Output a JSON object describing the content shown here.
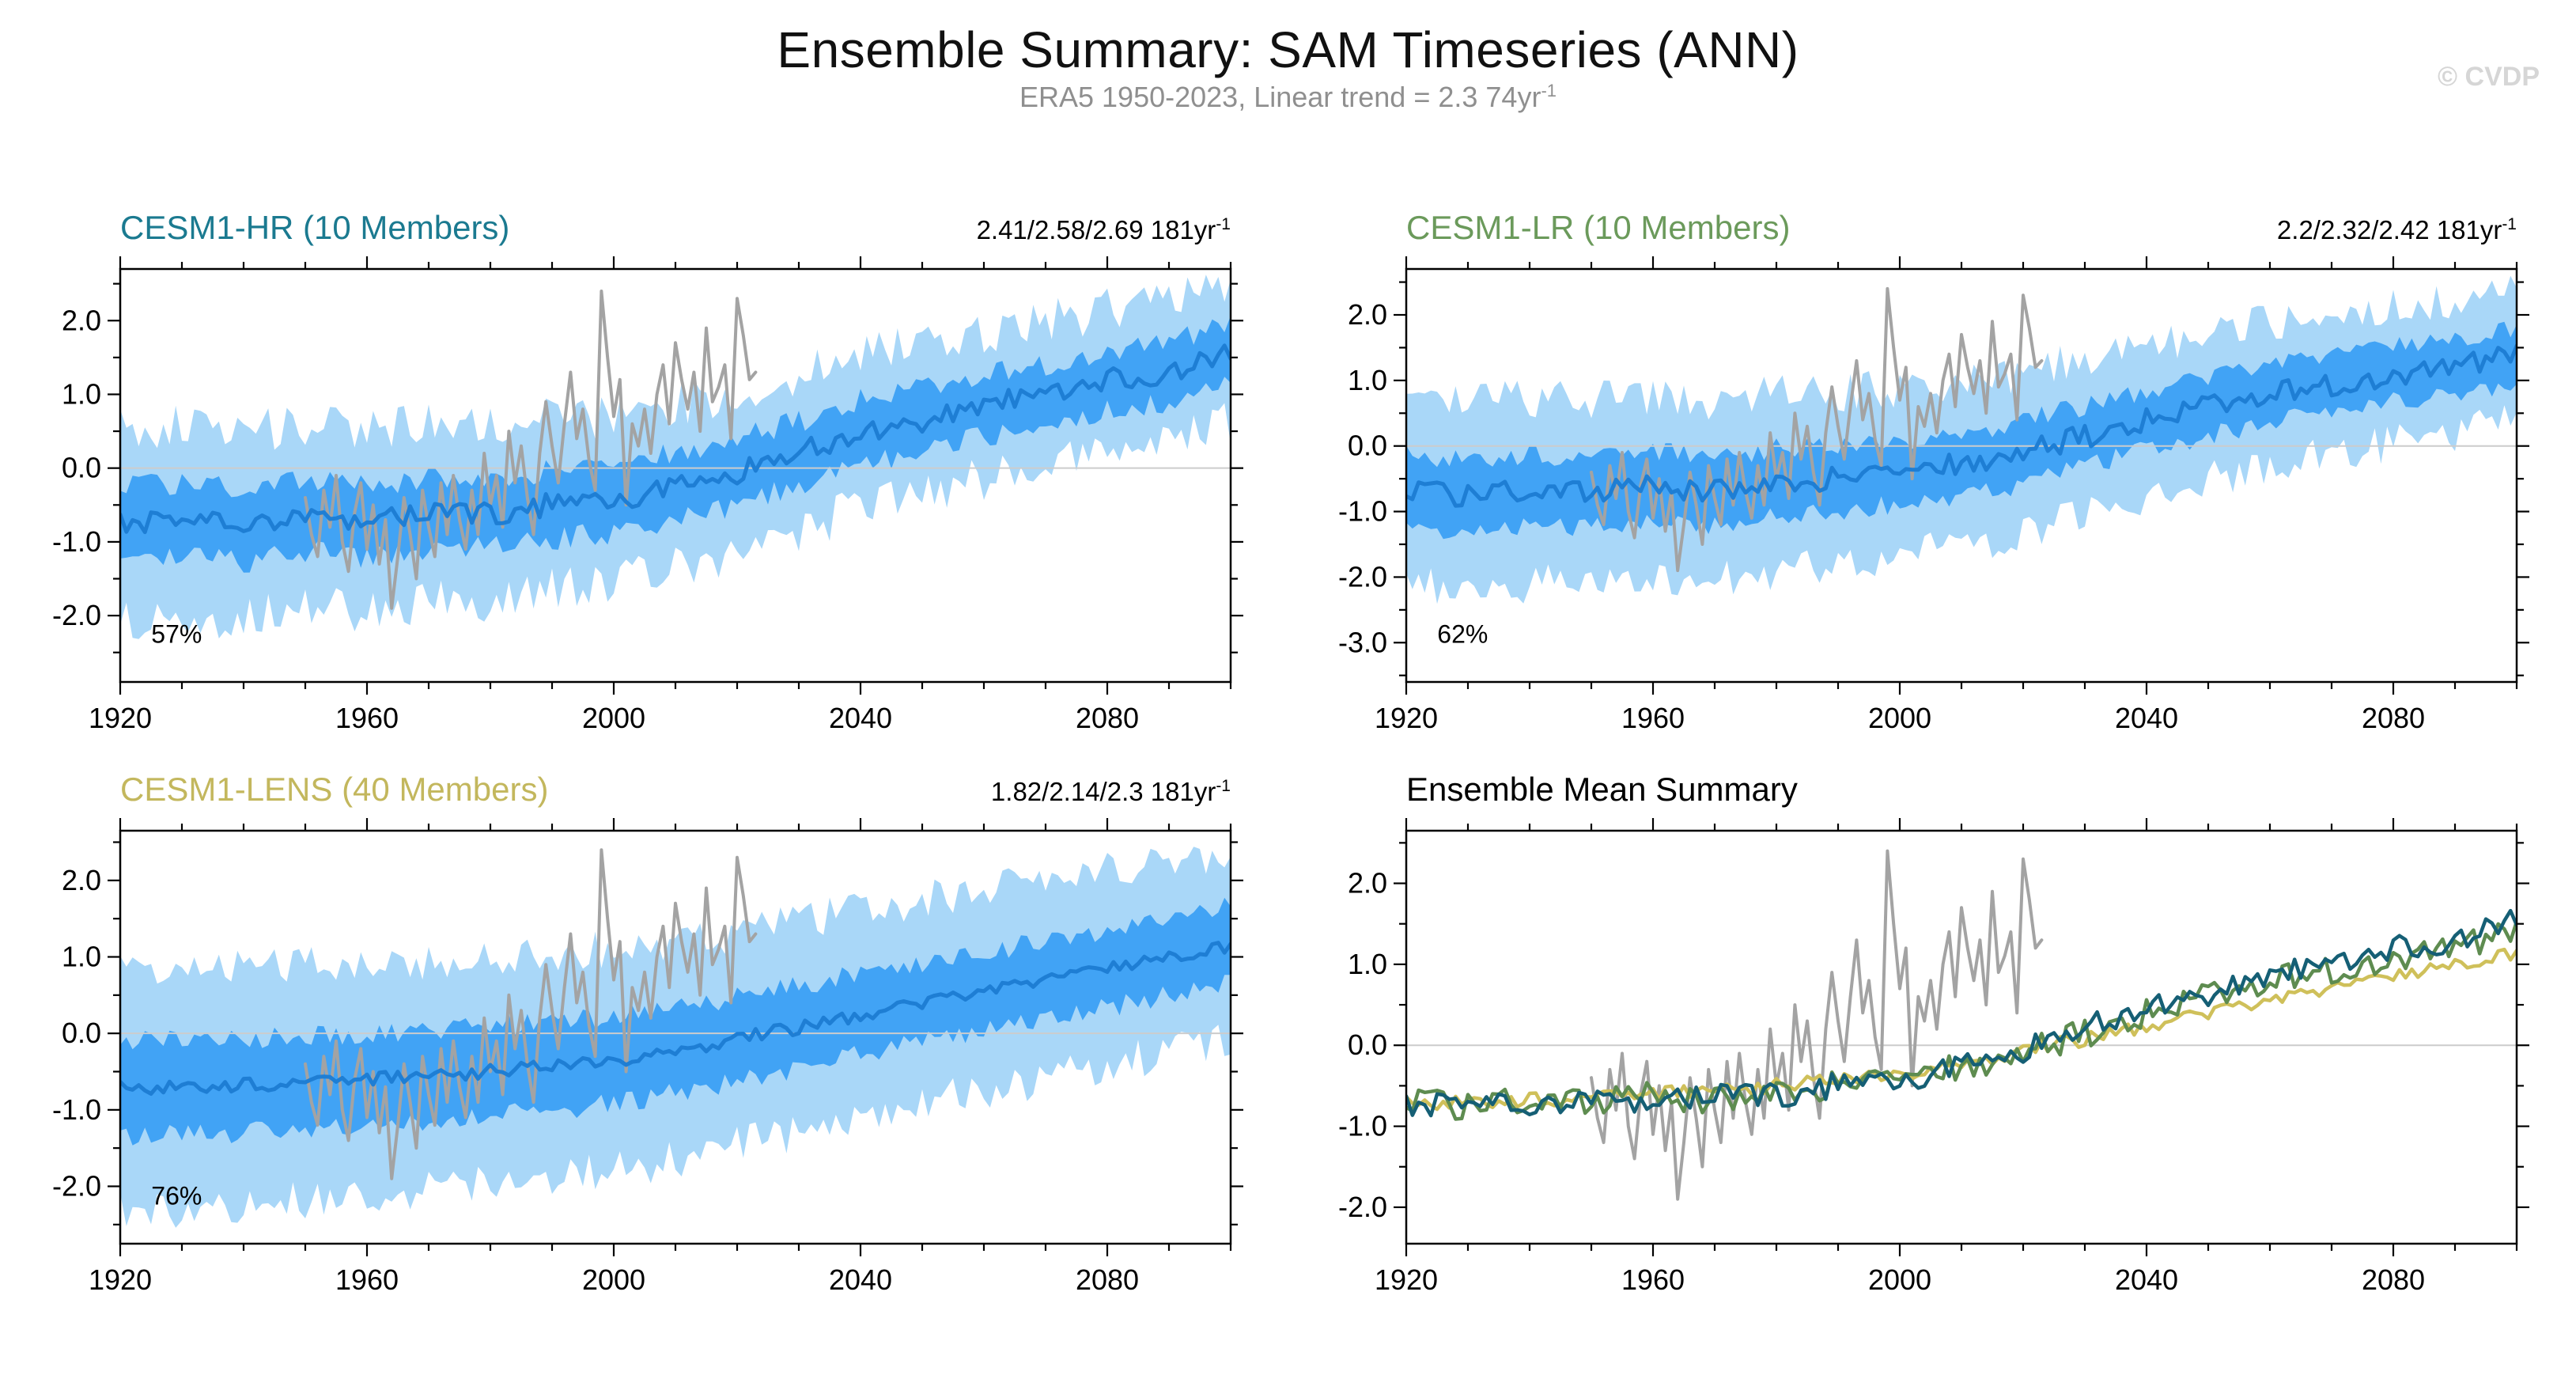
{
  "header": {
    "title": "Ensemble Summary: SAM Timeseries (ANN)",
    "subtitle": "ERA5 1950-2023, Linear trend = 2.3 74yr",
    "subtitle_sup": "-1",
    "watermark": "© CVDP"
  },
  "colors": {
    "outer_band": "#a9d7f8",
    "inner_band": "#41a3f5",
    "mean_line": "#1e7ed4",
    "obs_line": "#a3a3a3",
    "zero_line": "#cccccc",
    "axis": "#000000"
  },
  "obs_series": {
    "label": "ERA5",
    "start_year": 1950,
    "end_year": 2023,
    "values": [
      -0.4,
      -0.9,
      -1.2,
      -0.3,
      -0.8,
      -0.1,
      -1.0,
      -1.4,
      -0.6,
      -0.2,
      -1.1,
      -0.5,
      -1.3,
      -0.7,
      -1.9,
      -1.2,
      -0.4,
      -0.9,
      -1.5,
      -0.3,
      -0.8,
      -1.2,
      -0.2,
      -0.9,
      -0.1,
      -0.7,
      -1.1,
      -0.3,
      -0.9,
      0.2,
      -0.5,
      -0.1,
      -0.8,
      0.5,
      -0.2,
      0.3,
      -0.4,
      -0.9,
      0.2,
      0.9,
      0.3,
      -0.2,
      0.6,
      1.3,
      0.4,
      0.8,
      0.1,
      -0.3,
      2.4,
      1.5,
      0.7,
      1.2,
      -0.5,
      0.6,
      0.3,
      0.8,
      0.2,
      1.0,
      1.4,
      0.6,
      1.7,
      1.2,
      0.8,
      1.3,
      0.5,
      1.9,
      0.9,
      1.1,
      1.4,
      0.4,
      2.3,
      1.8,
      1.2,
      1.3
    ]
  },
  "chart_data": [
    {
      "type": "line",
      "title": "CESM1-HR (10 Members)",
      "title_color": "#1b7a90",
      "trend_label": "2.41/2.58/2.69 181yr",
      "trend_sup": "-1",
      "pct_label": "57%",
      "x_range": [
        1920,
        2100
      ],
      "x_ticks": [
        1920,
        1960,
        2000,
        2040,
        2080
      ],
      "x_minor_step": 10,
      "y_range": [
        -2.9,
        2.7
      ],
      "y_ticks": [
        -2,
        -1,
        0,
        1,
        2
      ],
      "y_minor_step": 0.5,
      "show_obs": true,
      "ensemble": {
        "anchor_start": 1920,
        "anchor_step": 10,
        "mean_anchors": [
          -0.75,
          -0.7,
          -0.78,
          -0.65,
          -0.72,
          -0.6,
          -0.62,
          -0.5,
          -0.42,
          -0.25,
          -0.05,
          0.2,
          0.5,
          0.65,
          0.85,
          1.0,
          1.2,
          1.3,
          1.55
        ],
        "mean_noise": 0.16,
        "seed": 3,
        "hw_x": [
          1920,
          1965,
          2010,
          2055,
          2100
        ],
        "inner_hw": [
          0.5,
          0.48,
          0.45,
          0.42,
          0.4
        ],
        "outer_hw": [
          1.3,
          1.22,
          1.1,
          1.0,
          0.92
        ],
        "inner_edge_noise": 0.16,
        "outer_edge_noise": 0.3
      }
    },
    {
      "type": "line",
      "title": "CESM1-LR (10 Members)",
      "title_color": "#6b9a5b",
      "trend_label": "2.2/2.32/2.42 181yr",
      "trend_sup": "-1",
      "pct_label": "62%",
      "x_range": [
        1920,
        2100
      ],
      "x_ticks": [
        1920,
        1960,
        2000,
        2040,
        2080
      ],
      "x_minor_step": 10,
      "y_range": [
        -3.6,
        2.7
      ],
      "y_ticks": [
        -3,
        -2,
        -1,
        0,
        1,
        2
      ],
      "y_minor_step": 0.5,
      "show_obs": true,
      "ensemble": {
        "anchor_start": 1920,
        "anchor_step": 10,
        "mean_anchors": [
          -0.7,
          -0.75,
          -0.68,
          -0.72,
          -0.6,
          -0.68,
          -0.55,
          -0.5,
          -0.4,
          -0.28,
          -0.1,
          0.15,
          0.4,
          0.6,
          0.8,
          0.95,
          1.1,
          1.2,
          1.4
        ],
        "mean_noise": 0.18,
        "seed": 7,
        "hw_x": [
          1920,
          1965,
          2010,
          2055,
          2100
        ],
        "inner_hw": [
          0.55,
          0.52,
          0.48,
          0.45,
          0.42
        ],
        "outer_hw": [
          1.45,
          1.38,
          1.25,
          1.1,
          1.0
        ],
        "inner_edge_noise": 0.16,
        "outer_edge_noise": 0.3
      }
    },
    {
      "type": "line",
      "title": "CESM1-LENS (40 Members)",
      "title_color": "#c3b75d",
      "trend_label": "1.82/2.14/2.3 181yr",
      "trend_sup": "-1",
      "pct_label": "76%",
      "x_range": [
        1920,
        2100
      ],
      "x_ticks": [
        1920,
        1960,
        2000,
        2040,
        2080
      ],
      "x_minor_step": 10,
      "y_range": [
        -2.75,
        2.65
      ],
      "y_ticks": [
        -2,
        -1,
        0,
        1,
        2
      ],
      "y_minor_step": 0.5,
      "show_obs": true,
      "ensemble": {
        "anchor_start": 1920,
        "anchor_step": 10,
        "mean_anchors": [
          -0.72,
          -0.7,
          -0.68,
          -0.65,
          -0.6,
          -0.55,
          -0.5,
          -0.42,
          -0.35,
          -0.22,
          -0.08,
          0.08,
          0.25,
          0.4,
          0.55,
          0.7,
          0.85,
          1.0,
          1.15
        ],
        "mean_noise": 0.09,
        "seed": 11,
        "hw_x": [
          1920,
          1965,
          2010,
          2055,
          2100
        ],
        "inner_hw": [
          0.62,
          0.6,
          0.56,
          0.52,
          0.5
        ],
        "outer_hw": [
          1.6,
          1.52,
          1.42,
          1.32,
          1.22
        ],
        "inner_edge_noise": 0.14,
        "outer_edge_noise": 0.26
      }
    },
    {
      "type": "line",
      "title": "Ensemble Mean Summary",
      "title_color": "#000000",
      "x_range": [
        1920,
        2100
      ],
      "x_ticks": [
        1920,
        1960,
        2000,
        2040,
        2080
      ],
      "x_minor_step": 10,
      "y_range": [
        -2.45,
        2.65
      ],
      "y_ticks": [
        -2,
        -1,
        0,
        1,
        2
      ],
      "y_minor_step": 0.5,
      "show_obs": true,
      "series": [
        {
          "from_panel": 2,
          "name": "CESM1-LENS",
          "color": "#cfc05a"
        },
        {
          "from_panel": 1,
          "name": "CESM1-LR",
          "color": "#5e8c50"
        },
        {
          "from_panel": 0,
          "name": "CESM1-HR",
          "color": "#155f75"
        }
      ]
    }
  ]
}
